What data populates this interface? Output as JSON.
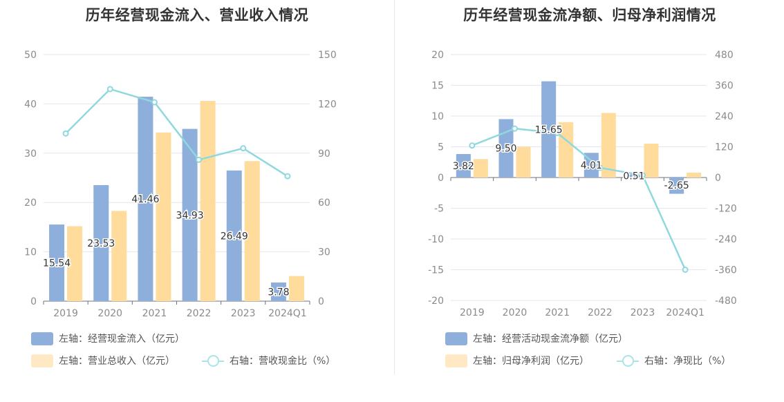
{
  "chart_data": [
    {
      "type": "bar",
      "title": "历年经营现金流入、营业收入情况",
      "categories": [
        "2019",
        "2020",
        "2021",
        "2022",
        "2023",
        "2024Q1"
      ],
      "y_left": {
        "min": 0,
        "max": 50,
        "ticks": [
          0,
          10,
          20,
          30,
          40,
          50
        ]
      },
      "y_right": {
        "min": 0,
        "max": 150,
        "ticks": [
          0,
          30,
          60,
          90,
          120,
          150
        ]
      },
      "series": [
        {
          "name": "左轴：经营现金流入（亿元）",
          "axis": "left",
          "kind": "bar",
          "color": "#8eaedc",
          "values": [
            15.54,
            23.53,
            41.46,
            34.93,
            26.49,
            3.78
          ],
          "labels": [
            "15.54",
            "23.53",
            "41.46",
            "34.93",
            "26.49",
            "3.78"
          ]
        },
        {
          "name": "左轴：营业总收入（亿元）",
          "axis": "left",
          "kind": "bar",
          "color": "#ffdb9c",
          "values": [
            15.2,
            18.3,
            34.2,
            40.6,
            28.4,
            5.1
          ]
        },
        {
          "name": "右轴：营收现金比（%）",
          "axis": "right",
          "kind": "line",
          "color": "#8fd8de",
          "values": [
            102,
            129,
            121,
            86,
            93,
            76
          ]
        }
      ],
      "legend": [
        {
          "label": "左轴：经营现金流入（亿元）",
          "swatch": "bar",
          "color": "#8eaedc"
        },
        {
          "label": "左轴：营业总收入（亿元）",
          "swatch": "bar",
          "color": "#ffe8c4"
        },
        {
          "label": "右轴：营收现金比（%）",
          "swatch": "line",
          "color": "#a8e4ea"
        }
      ]
    },
    {
      "type": "bar",
      "title": "历年经营现金流净额、归母净利润情况",
      "categories": [
        "2019",
        "2020",
        "2021",
        "2022",
        "2023",
        "2024Q1"
      ],
      "y_left": {
        "min": -20,
        "max": 20,
        "ticks": [
          -20,
          -15,
          -10,
          -5,
          0,
          5,
          10,
          15,
          20
        ]
      },
      "y_right": {
        "min": -480,
        "max": 480,
        "ticks": [
          -480,
          -360,
          -240,
          -120,
          0,
          120,
          240,
          360,
          480
        ]
      },
      "series": [
        {
          "name": "左轴：经营活动现金流净额（亿元）",
          "axis": "left",
          "kind": "bar",
          "color": "#8eaedc",
          "values": [
            3.82,
            9.5,
            15.65,
            4.01,
            0.51,
            -2.65
          ],
          "labels": [
            "3.82",
            "9.50",
            "15.65",
            "4.01",
            "0.51",
            "-2.65"
          ]
        },
        {
          "name": "左轴：归母净利润（亿元）",
          "axis": "left",
          "kind": "bar",
          "color": "#ffdb9c",
          "values": [
            3.0,
            5.0,
            9.0,
            10.5,
            5.5,
            0.8
          ]
        },
        {
          "name": "右轴：净现比（%）",
          "axis": "right",
          "kind": "line",
          "color": "#8fd8de",
          "values": [
            125,
            191,
            174,
            38,
            9,
            -360
          ]
        }
      ],
      "legend": [
        {
          "label": "左轴：经营活动现金流净额（亿元）",
          "swatch": "bar",
          "color": "#8eaedc"
        },
        {
          "label": "左轴：归母净利润（亿元）",
          "swatch": "bar",
          "color": "#ffe8c4"
        },
        {
          "label": "右轴：净现比（%）",
          "swatch": "line",
          "color": "#a8e4ea"
        }
      ]
    }
  ]
}
